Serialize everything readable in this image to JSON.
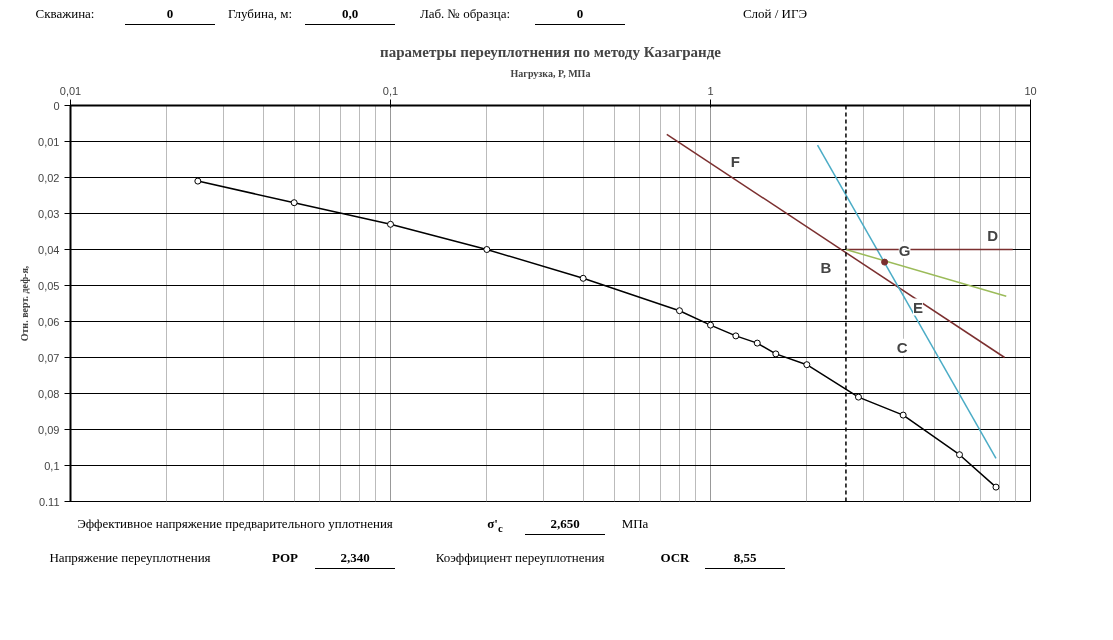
{
  "chart_data": {
    "type": "line",
    "title": "параметры переуплотнения по методу Казагранде",
    "xlabel": "Нагрузка, P, МПа",
    "ylabel": "Отн. верт. деф-я,",
    "log": "x",
    "xlim": [
      0.01,
      10
    ],
    "xticks": [
      {
        "value": 0.01,
        "label": "0,01"
      },
      {
        "value": 0.1,
        "label": "0,1"
      },
      1,
      10
    ],
    "ylim": [
      0.11,
      0
    ],
    "yticks": [
      0,
      {
        "value": 0.01,
        "label": "0,01"
      },
      {
        "value": 0.02,
        "label": "0,02"
      },
      {
        "value": 0.03,
        "label": "0,03"
      },
      {
        "value": 0.04,
        "label": "0,04"
      },
      {
        "value": 0.05,
        "label": "0,05"
      },
      {
        "value": 0.06,
        "label": "0,06"
      },
      {
        "value": 0.07,
        "label": "0,07"
      },
      {
        "value": 0.08,
        "label": "0,08"
      },
      {
        "value": 0.09,
        "label": "0,09"
      },
      {
        "value": 0.1,
        "label": "0,1"
      },
      {
        "value": 0.11,
        "label": "0,11"
      }
    ],
    "grid": true,
    "series": [
      {
        "marker": "circle",
        "color": "#000000",
        "x": [
          0.025,
          0.05,
          0.1,
          0.2,
          0.4,
          0.8,
          1.0,
          1.2,
          1.4,
          1.6,
          2.0,
          2.9,
          4.0,
          6.0,
          7.8
        ],
        "values": [
          0.021,
          0.027,
          0.033,
          0.04,
          0.048,
          0.057,
          0.061,
          0.064,
          0.066,
          0.069,
          0.072,
          0.081,
          0.086,
          0.097,
          0.106
        ]
      },
      {
        "type": "line",
        "marker": "none",
        "color": "#7b2f2f",
        "x": [
          0.73,
          8.3
        ],
        "values": [
          0.008,
          0.07
        ]
      },
      {
        "type": "line",
        "marker": "none",
        "color": "#4bacc6",
        "x": [
          2.16,
          7.8
        ],
        "values": [
          0.011,
          0.098
        ]
      },
      {
        "type": "line",
        "marker": "none",
        "color": "#7b2f2f",
        "x": [
          2.65,
          8.8
        ],
        "values": [
          0.04,
          0.04
        ]
      },
      {
        "type": "line",
        "marker": "none",
        "color": "#9bbb59",
        "x": [
          2.65,
          8.4
        ],
        "values": [
          0.04,
          0.053
        ]
      },
      {
        "type": "scatter",
        "marker": "circle",
        "color": "#7b2f2f",
        "x": [
          3.5
        ],
        "values": [
          0.0435
        ]
      }
    ],
    "ref_lines": [
      {
        "axis": "x",
        "value": 2.65,
        "color": "#000000",
        "line_style": "dashed"
      }
    ],
    "annotations": [
      "Скважина:",
      "0",
      "Глубина, м:",
      "0,0",
      "Лаб. № образца:",
      "0",
      "Слой / ИГЭ",
      "Эффективное напряжение предварительного уплотнения",
      "σ'$_{c}$",
      "2,650",
      "МПа",
      "Напряжение переуплотнения",
      "POP",
      "2,340",
      "Коэффициент переуплотнения",
      "OCR",
      "8,55",
      "F",
      "G",
      "D",
      "B",
      "E",
      "C"
    ]
  }
}
